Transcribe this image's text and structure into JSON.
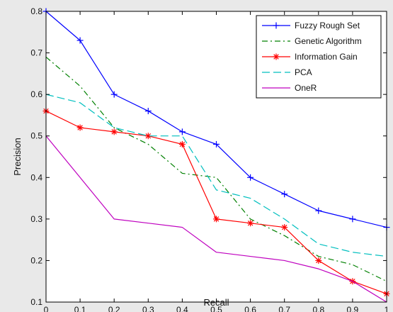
{
  "chart_data": {
    "type": "line",
    "xlabel": "Recall",
    "ylabel": "Precision",
    "xlim": [
      0,
      1
    ],
    "ylim": [
      0.1,
      0.8
    ],
    "xticks": [
      0,
      0.1,
      0.2,
      0.3,
      0.4,
      0.5,
      0.6,
      0.7,
      0.8,
      0.9,
      1
    ],
    "xtick_labels": [
      "0",
      "0.1",
      "0.2",
      "0.3",
      "0.4",
      "0.5",
      "0.6",
      "0.7",
      "0.8",
      "0.9",
      "1"
    ],
    "yticks": [
      0.1,
      0.2,
      0.3,
      0.4,
      0.5,
      0.6,
      0.7,
      0.8
    ],
    "ytick_labels": [
      "0.1",
      "0.2",
      "0.3",
      "0.4",
      "0.5",
      "0.6",
      "0.7",
      "0.8"
    ],
    "grid": false,
    "legend_position": "top-right",
    "x": [
      0,
      0.1,
      0.2,
      0.3,
      0.4,
      0.5,
      0.6,
      0.7,
      0.8,
      0.9,
      1
    ],
    "series": [
      {
        "name": "Fuzzy Rough Set",
        "color": "#0000ff",
        "line_style": "solid",
        "marker": "plus",
        "values": [
          0.8,
          0.73,
          0.6,
          0.56,
          0.51,
          0.48,
          0.4,
          0.36,
          0.32,
          0.3,
          0.28
        ]
      },
      {
        "name": "Genetic Algorithm",
        "color": "#008000",
        "line_style": "dashdot",
        "marker": "none",
        "values": [
          0.69,
          0.62,
          0.52,
          0.48,
          0.41,
          0.4,
          0.3,
          0.26,
          0.21,
          0.19,
          0.15
        ]
      },
      {
        "name": "Information Gain",
        "color": "#ff0000",
        "line_style": "solid",
        "marker": "asterisk",
        "values": [
          0.56,
          0.52,
          0.51,
          0.5,
          0.48,
          0.3,
          0.29,
          0.28,
          0.2,
          0.15,
          0.12
        ]
      },
      {
        "name": "PCA",
        "color": "#00bfbf",
        "line_style": "dashed",
        "marker": "none",
        "values": [
          0.6,
          0.58,
          0.52,
          0.5,
          0.5,
          0.37,
          0.35,
          0.3,
          0.24,
          0.22,
          0.21
        ]
      },
      {
        "name": "OneR",
        "color": "#bf00bf",
        "line_style": "solid",
        "marker": "none",
        "values": [
          0.5,
          0.4,
          0.3,
          0.29,
          0.28,
          0.22,
          0.21,
          0.2,
          0.18,
          0.15,
          0.1
        ]
      }
    ]
  }
}
